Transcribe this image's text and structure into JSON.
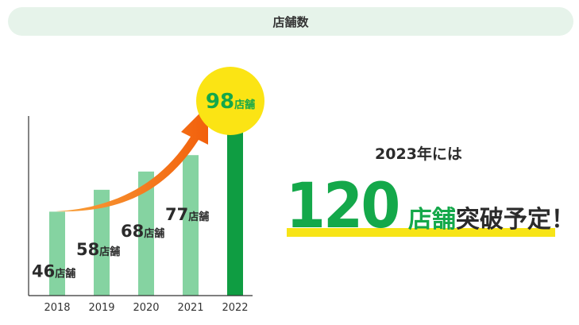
{
  "header": {
    "title": "店舗数"
  },
  "chart_data": {
    "type": "bar",
    "categories": [
      "2018",
      "2019",
      "2020",
      "2021",
      "2022"
    ],
    "values": [
      46,
      58,
      68,
      77,
      98
    ],
    "unit": "店舗",
    "highlight_index": 4,
    "title": "",
    "xlabel": "",
    "ylabel": "",
    "ylim": [
      0,
      98
    ],
    "grid": false,
    "colors": {
      "bar": "#85d3a1",
      "bar_highlight": "#0f9d42",
      "label": "#2b2b2b",
      "highlight_label": "#14a84a",
      "circle": "#fbe414",
      "arrow": "#f56a12",
      "axis": "#333333"
    }
  },
  "promo": {
    "line1": "2023年には",
    "number": "120",
    "unit": "店舗",
    "suffix": "突破予定！",
    "colors": {
      "number": "#14a84a",
      "highlight": "#f7e417"
    }
  }
}
